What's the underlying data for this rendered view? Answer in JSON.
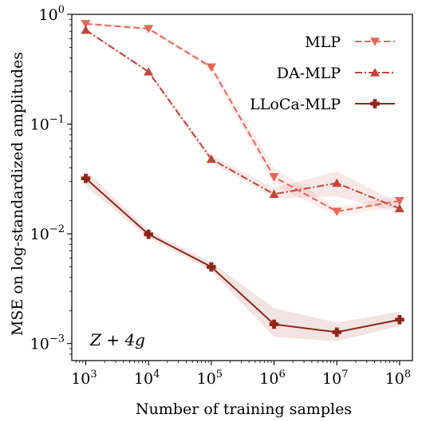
{
  "chart_data": {
    "type": "line",
    "xlabel": "Number of training samples",
    "ylabel": "MSE on log-standardized amplitudes",
    "xscale": "log",
    "yscale": "log",
    "xlim": [
      600,
      160000000
    ],
    "ylim": [
      0.0007,
      1.0
    ],
    "x": [
      1000,
      10000,
      100000,
      1000000,
      10000000,
      100000000
    ],
    "xtick_labels": [
      {
        "base": "10",
        "exp": "3",
        "value": 1000
      },
      {
        "base": "10",
        "exp": "4",
        "value": 10000
      },
      {
        "base": "10",
        "exp": "5",
        "value": 100000
      },
      {
        "base": "10",
        "exp": "6",
        "value": 1000000
      },
      {
        "base": "10",
        "exp": "7",
        "value": 10000000
      },
      {
        "base": "10",
        "exp": "8",
        "value": 100000000
      }
    ],
    "ytick_labels": [
      {
        "base": "10",
        "exp": "0",
        "value": 1.0
      },
      {
        "base": "10",
        "exp": "−1",
        "value": 0.1
      },
      {
        "base": "10",
        "exp": "−2",
        "value": 0.01
      },
      {
        "base": "10",
        "exp": "−3",
        "value": 0.001
      }
    ],
    "legend_position": "top-right",
    "annotation": "Z + 4g",
    "series": [
      {
        "name": "MLP",
        "color": "#e2685c",
        "linestyle": "dashed",
        "marker": "triangle-down",
        "values": [
          0.82,
          0.74,
          0.33,
          0.033,
          0.016,
          0.02
        ],
        "band_low": [
          0.8,
          0.72,
          0.31,
          0.028,
          0.0145,
          0.018
        ],
        "band_high": [
          0.85,
          0.77,
          0.35,
          0.04,
          0.0175,
          0.022
        ]
      },
      {
        "name": "DA-MLP",
        "color": "#c0453a",
        "linestyle": "dashdot",
        "marker": "triangle-up",
        "values": [
          0.72,
          0.3,
          0.048,
          0.023,
          0.029,
          0.017
        ],
        "band_low": [
          0.7,
          0.29,
          0.045,
          0.021,
          0.022,
          0.0155
        ],
        "band_high": [
          0.74,
          0.31,
          0.052,
          0.026,
          0.037,
          0.019
        ]
      },
      {
        "name": "LLoCa-MLP",
        "color": "#8e2519",
        "linestyle": "solid",
        "marker": "plus",
        "values": [
          0.032,
          0.0099,
          0.005,
          0.0015,
          0.00127,
          0.00165
        ],
        "band_low": [
          0.027,
          0.0092,
          0.0046,
          0.00115,
          0.00105,
          0.00145
        ],
        "band_high": [
          0.038,
          0.0107,
          0.0055,
          0.0021,
          0.00155,
          0.00195
        ]
      }
    ]
  }
}
